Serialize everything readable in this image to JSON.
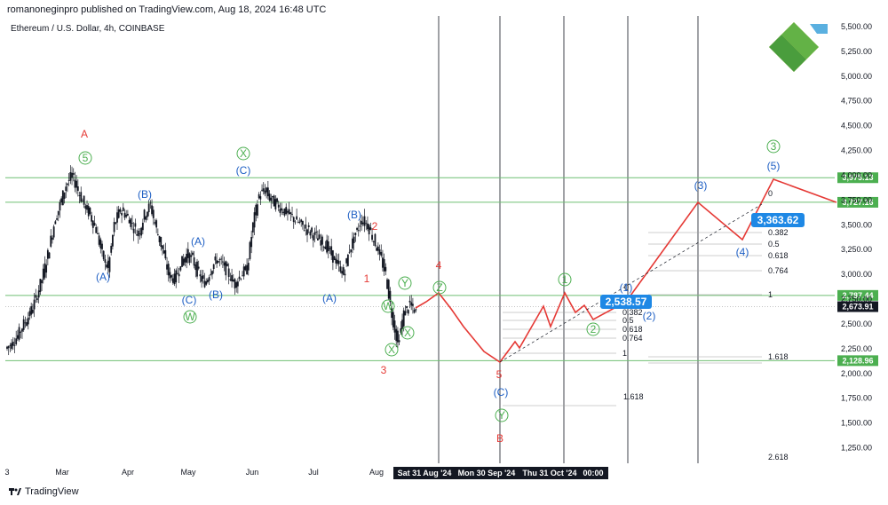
{
  "header": {
    "published": "romanoneginpro published on TradingView.com, Aug 18, 2024 16:48 UTC",
    "symbol": "Ethereum / U.S. Dollar, 4h, COINBASE"
  },
  "footer": {
    "brand": "TradingView",
    "logo_icon": "tradingview-logo-icon"
  },
  "colors": {
    "green": "#4caf50",
    "blue": "#2962ff",
    "red": "#e53935",
    "wave_blue": "#1e5fc4",
    "hline": "#6fbf73",
    "black": "#131722",
    "accent_box": "#1e88e5"
  },
  "chart_data": {
    "type": "candlestick",
    "title": "Ethereum / U.S. Dollar, 4h, COINBASE",
    "ylim": [
      1150,
      5600
    ],
    "y_ticks": [
      1250,
      1500,
      1750,
      2000,
      2250,
      2500,
      2750,
      3000,
      3250,
      3500,
      3750,
      4000,
      4250,
      4500,
      4750,
      5000,
      5250,
      5500
    ],
    "y_tick_labels": [
      "1,250.00",
      "1,500.00",
      "1,750.00",
      "2,000.00",
      "2,250.00",
      "2,500.00",
      "2,750.00",
      "3,000.00",
      "3,250.00",
      "3,500.00",
      "3,750.00",
      "4,000.00",
      "4,250.00",
      "4,500.00",
      "4,750.00",
      "5,000.00",
      "5,250.00",
      "5,500.00"
    ],
    "x_labels": [
      "3",
      "Mar",
      "Apr",
      "May",
      "Jun",
      "Jul",
      "Aug"
    ],
    "x_label_boxes": [
      "Sat 31 Aug '24",
      "Mon 30 Sep '24",
      "Thu 31 Oct '24",
      "00:00"
    ],
    "price_path": [
      [
        0,
        2250
      ],
      [
        2,
        2300
      ],
      [
        4,
        2380
      ],
      [
        6,
        2500
      ],
      [
        8,
        2600
      ],
      [
        10,
        2750
      ],
      [
        12,
        2950
      ],
      [
        14,
        3200
      ],
      [
        16,
        3500
      ],
      [
        18,
        3700
      ],
      [
        20,
        3900
      ],
      [
        21,
        4000
      ],
      [
        22,
        3850
      ],
      [
        23,
        3700
      ],
      [
        24,
        3600
      ],
      [
        25,
        3450
      ],
      [
        26,
        3200
      ],
      [
        27,
        3050
      ],
      [
        28,
        3500
      ],
      [
        29,
        3650
      ],
      [
        30,
        3600
      ],
      [
        31,
        3500
      ],
      [
        32,
        3400
      ],
      [
        33,
        3600
      ],
      [
        34,
        3700
      ],
      [
        35,
        3450
      ],
      [
        36,
        3250
      ],
      [
        37,
        3000
      ],
      [
        38,
        2950
      ],
      [
        39,
        3100
      ],
      [
        40,
        3200
      ],
      [
        41,
        3150
      ],
      [
        42,
        3000
      ],
      [
        43,
        2900
      ],
      [
        44,
        3050
      ],
      [
        45,
        3150
      ],
      [
        46,
        3100
      ],
      [
        47,
        3000
      ],
      [
        48,
        2900
      ],
      [
        49,
        3000
      ],
      [
        50,
        3050
      ],
      [
        51,
        3500
      ],
      [
        52,
        3800
      ],
      [
        53,
        3850
      ],
      [
        54,
        3750
      ],
      [
        55,
        3700
      ],
      [
        56,
        3650
      ],
      [
        57,
        3600
      ],
      [
        58,
        3550
      ],
      [
        59,
        3500
      ],
      [
        60,
        3450
      ],
      [
        61,
        3400
      ],
      [
        62,
        3350
      ],
      [
        63,
        3300
      ],
      [
        64,
        3200
      ],
      [
        65,
        3100
      ],
      [
        66,
        3000
      ],
      [
        67,
        3250
      ],
      [
        68,
        3400
      ],
      [
        69,
        3550
      ],
      [
        70,
        3500
      ],
      [
        71,
        3350
      ],
      [
        72,
        3200
      ],
      [
        73,
        3000
      ],
      [
        74,
        2600
      ],
      [
        75,
        2300
      ],
      [
        76,
        2600
      ],
      [
        77,
        2700
      ],
      [
        78,
        2600
      ]
    ],
    "levels": [
      {
        "value": 3975.13,
        "label": "3,975.13",
        "color": "#4caf50"
      },
      {
        "value": 3727.16,
        "label": "3,727.16",
        "color": "#4caf50"
      },
      {
        "value": 2787.44,
        "label": "2,787.44",
        "color": "#4caf50"
      },
      {
        "value": 2673.91,
        "label": "2,673.91",
        "color": "#131722"
      },
      {
        "value": 2128.96,
        "label": "2,128.96",
        "color": "#4caf50"
      }
    ],
    "forecast_path": [
      [
        2673,
        2673
      ],
      [
        2800,
        2700
      ],
      [
        2680,
        2673
      ],
      [
        2550,
        2300
      ],
      [
        2400,
        2130
      ],
      [
        2480,
        2250
      ],
      [
        2500,
        2250
      ],
      [
        2650,
        2650
      ],
      [
        2550,
        2500
      ],
      [
        2800,
        2800
      ],
      [
        2650,
        2650
      ],
      [
        2700,
        2700
      ],
      [
        2560,
        2560
      ],
      [
        2700,
        2700
      ],
      [
        3727,
        3727
      ],
      [
        3363,
        3363
      ],
      [
        3975,
        3975
      ],
      [
        3727,
        3727
      ]
    ],
    "forecast_label": "2,538.57",
    "forecast_label2": "3,363.62",
    "fib_left": [
      "0.382",
      "0.5",
      "0.618",
      "0.764",
      "1",
      "1.618"
    ],
    "fib_right": [
      "0",
      "0.382",
      "0.5",
      "0.618",
      "0.764",
      "1",
      "1.618",
      "2.618"
    ],
    "fib_right_top": "0",
    "fib_left_top": "0",
    "wave_labels": {
      "A": "A",
      "B": "B",
      "r1": "1",
      "r2": "2",
      "r3": "3",
      "r4": "4",
      "r5": "5",
      "g5": "5",
      "gX": "X",
      "gW": "W",
      "gY": "Y",
      "gZ": "Z",
      "gX2": "X",
      "gW2": "W",
      "gX3": "X",
      "gY2": "Y",
      "g1": "1",
      "g2": "2",
      "g3": "3",
      "bA": "(A)",
      "bB": "(B)",
      "bC": "(C)",
      "bA2": "(A)",
      "bB2": "(B)",
      "bC2": "(C)",
      "bA3": "(A)",
      "bB3": "(B)",
      "bC3": "(C)",
      "b1": "(1)",
      "b2": "(2)",
      "b3": "(3)",
      "b4": "(4)",
      "b5": "(5)"
    }
  }
}
